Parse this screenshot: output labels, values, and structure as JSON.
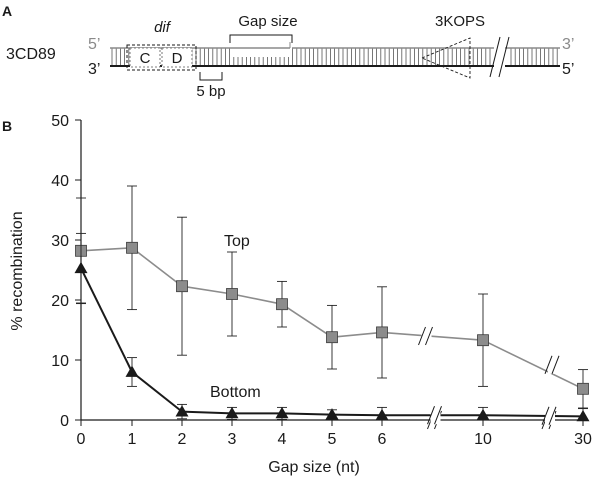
{
  "panel_a": {
    "label": "A",
    "construct_name": "3CD89",
    "top_left_end": "5’",
    "bottom_left_end": "3’",
    "top_right_end": "3’",
    "bottom_right_end": "5’",
    "site_label": "dif",
    "c_label": "C",
    "d_label": "D",
    "gap_label": "Gap size",
    "kops_label": "3KOPS",
    "scale_label": "5 bp"
  },
  "panel_b_label": "B",
  "chart_data": {
    "type": "line",
    "title": "",
    "xlabel": "Gap size (nt)",
    "ylabel": "% recombination",
    "ylim": [
      0,
      50
    ],
    "yticks": [
      0,
      10,
      20,
      30,
      40,
      50
    ],
    "x": [
      0,
      1,
      2,
      3,
      4,
      5,
      6,
      10,
      30
    ],
    "xtick_labels": [
      "0",
      "1",
      "2",
      "3",
      "4",
      "5",
      "6",
      "10",
      "30"
    ],
    "axis_breaks": [
      "between 6 and 10",
      "between 10 and 30"
    ],
    "grid": false,
    "series": [
      {
        "name": "Top",
        "color": "#8c8c8c",
        "marker": "square",
        "values": [
          28.2,
          28.7,
          22.3,
          21.0,
          19.3,
          13.8,
          14.6,
          13.3,
          5.2
        ],
        "error": [
          8.8,
          10.3,
          11.5,
          7.0,
          3.8,
          5.3,
          7.6,
          7.7,
          3.2
        ]
      },
      {
        "name": "Bottom",
        "color": "#1a1a1a",
        "marker": "triangle",
        "values": [
          25.3,
          8.0,
          1.4,
          1.1,
          1.1,
          0.9,
          0.8,
          0.8,
          0.6
        ],
        "error": [
          5.8,
          2.4,
          1.2,
          1.0,
          1.0,
          0.8,
          1.3,
          1.3,
          1.3
        ]
      }
    ]
  }
}
